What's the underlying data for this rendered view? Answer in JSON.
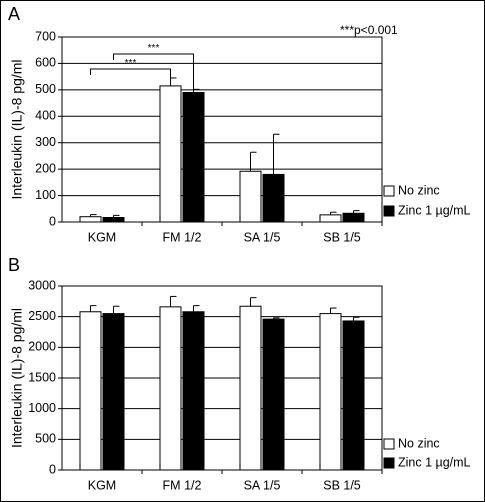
{
  "chart_data": [
    {
      "type": "bar",
      "panel_label": "A",
      "annotation": "***p<0.001",
      "ylabel": "Interleukin (IL)-8 pg/ml",
      "ylim": [
        0,
        700
      ],
      "yticks": [
        0,
        100,
        200,
        300,
        400,
        500,
        600,
        700
      ],
      "categories": [
        "KGM",
        "FM 1/2",
        "SA 1/5",
        "SB 1/5"
      ],
      "series": [
        {
          "name": "No zinc",
          "color": "#ffffff",
          "values": [
            20,
            515,
            192,
            27
          ],
          "errors": [
            8,
            30,
            72,
            10
          ]
        },
        {
          "name": "Zinc 1 µg/mL",
          "color": "#000000",
          "values": [
            17,
            490,
            180,
            33
          ],
          "errors": [
            8,
            12,
            152,
            10
          ]
        }
      ],
      "significance": [
        {
          "label": "***",
          "from": [
            0,
            0
          ],
          "to": [
            1,
            0
          ]
        },
        {
          "label": "***",
          "from": [
            0,
            1
          ],
          "to": [
            1,
            1
          ]
        }
      ],
      "grid": true,
      "legend": "bottom-right"
    },
    {
      "type": "bar",
      "panel_label": "B",
      "ylabel": "Interleukin (IL)-8 pg/ml",
      "ylim": [
        0,
        3000
      ],
      "yticks": [
        0,
        500,
        1000,
        1500,
        2000,
        2500,
        3000
      ],
      "categories": [
        "KGM",
        "FM 1/2",
        "SA 1/5",
        "SB 1/5"
      ],
      "series": [
        {
          "name": "No zinc",
          "color": "#ffffff",
          "values": [
            2580,
            2660,
            2670,
            2550
          ],
          "errors": [
            100,
            170,
            140,
            90
          ]
        },
        {
          "name": "Zinc 1 µg/mL",
          "color": "#000000",
          "values": [
            2550,
            2580,
            2460,
            2430
          ],
          "errors": [
            120,
            100,
            20,
            60
          ]
        }
      ],
      "grid": true,
      "legend": "bottom-right"
    }
  ]
}
